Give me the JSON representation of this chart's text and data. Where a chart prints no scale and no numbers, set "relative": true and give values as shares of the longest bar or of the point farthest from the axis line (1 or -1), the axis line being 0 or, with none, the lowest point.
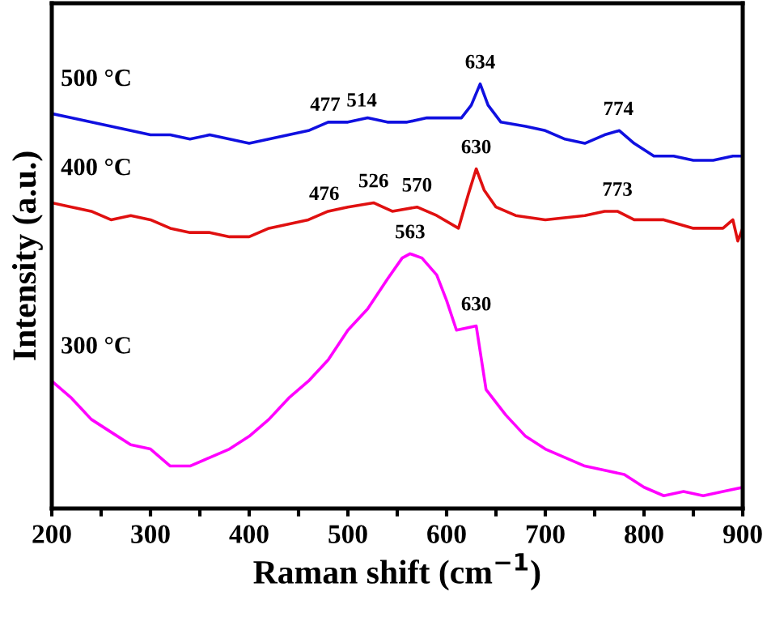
{
  "chart_data": {
    "type": "line",
    "relative": true,
    "xlabel": "Raman shift (cm$^{−1}$)",
    "ylabel": "Intensity (a.u.)",
    "legend": false,
    "grid": false,
    "tick_labels": "x",
    "xlim": [
      200,
      900
    ],
    "xticks": [
      200,
      {
        "value": 250,
        "label": null
      },
      300,
      {
        "value": 350,
        "label": null
      },
      400,
      {
        "value": 450,
        "label": null
      },
      500,
      {
        "value": 550,
        "label": null
      },
      600,
      {
        "value": 650,
        "label": null
      },
      700,
      {
        "value": 750,
        "label": null
      },
      800,
      {
        "value": 850,
        "label": null
      },
      900
    ],
    "series": [
      {
        "name": "500 °C",
        "color": "#1010e0",
        "x": [
          200,
          220,
          240,
          260,
          280,
          300,
          320,
          340,
          360,
          380,
          400,
          420,
          440,
          460,
          480,
          500,
          520,
          540,
          560,
          580,
          600,
          615,
          625,
          634,
          642,
          655,
          680,
          700,
          720,
          740,
          760,
          775,
          790,
          810,
          830,
          850,
          870,
          890,
          900
        ],
        "values": [
          0.93,
          0.92,
          0.91,
          0.9,
          0.89,
          0.88,
          0.88,
          0.87,
          0.88,
          0.87,
          0.86,
          0.87,
          0.88,
          0.89,
          0.91,
          0.91,
          0.92,
          0.91,
          0.91,
          0.92,
          0.92,
          0.92,
          0.95,
          1.0,
          0.95,
          0.91,
          0.9,
          0.89,
          0.87,
          0.86,
          0.88,
          0.89,
          0.86,
          0.83,
          0.83,
          0.82,
          0.82,
          0.83,
          0.83
        ]
      },
      {
        "name": "400 °C",
        "color": "#e01010",
        "x": [
          200,
          220,
          240,
          260,
          280,
          300,
          320,
          340,
          360,
          380,
          400,
          420,
          440,
          460,
          480,
          500,
          526,
          545,
          570,
          590,
          612,
          622,
          630,
          638,
          650,
          670,
          700,
          740,
          760,
          773,
          790,
          820,
          850,
          880,
          890,
          895,
          900
        ],
        "values": [
          0.72,
          0.71,
          0.7,
          0.68,
          0.69,
          0.68,
          0.66,
          0.65,
          0.65,
          0.64,
          0.64,
          0.66,
          0.67,
          0.68,
          0.7,
          0.71,
          0.72,
          0.7,
          0.71,
          0.69,
          0.66,
          0.74,
          0.8,
          0.75,
          0.71,
          0.69,
          0.68,
          0.69,
          0.7,
          0.7,
          0.68,
          0.68,
          0.66,
          0.66,
          0.68,
          0.63,
          0.66
        ]
      },
      {
        "name": "300 °C",
        "color": "#ff00ff",
        "x": [
          200,
          220,
          240,
          260,
          280,
          300,
          320,
          340,
          360,
          380,
          400,
          420,
          440,
          460,
          480,
          500,
          520,
          540,
          555,
          563,
          575,
          590,
          600,
          610,
          630,
          640,
          660,
          680,
          700,
          720,
          740,
          760,
          780,
          800,
          820,
          840,
          860,
          880,
          900
        ],
        "values": [
          0.3,
          0.26,
          0.21,
          0.18,
          0.15,
          0.14,
          0.1,
          0.1,
          0.12,
          0.14,
          0.17,
          0.21,
          0.26,
          0.3,
          0.35,
          0.42,
          0.47,
          0.54,
          0.59,
          0.6,
          0.59,
          0.55,
          0.49,
          0.42,
          0.43,
          0.28,
          0.22,
          0.17,
          0.14,
          0.12,
          0.1,
          0.09,
          0.08,
          0.05,
          0.03,
          0.04,
          0.03,
          0.04,
          0.05
        ]
      }
    ],
    "annotations": [
      {
        "text": "477",
        "x": 477,
        "y": 0.9
      },
      {
        "text": "514",
        "x": 514,
        "y": 0.91
      },
      {
        "text": "634",
        "x": 634,
        "y": 1.0
      },
      {
        "text": "774",
        "x": 774,
        "y": 0.89
      },
      {
        "text": "476",
        "x": 476,
        "y": 0.69
      },
      {
        "text": "526",
        "x": 526,
        "y": 0.72
      },
      {
        "text": "570",
        "x": 570,
        "y": 0.71
      },
      {
        "text": "630",
        "x": 630,
        "y": 0.8
      },
      {
        "text": "773",
        "x": 773,
        "y": 0.7
      },
      {
        "text": "563",
        "x": 563,
        "y": 0.6
      },
      {
        "text": "630",
        "x": 630,
        "y": 0.43
      }
    ]
  }
}
